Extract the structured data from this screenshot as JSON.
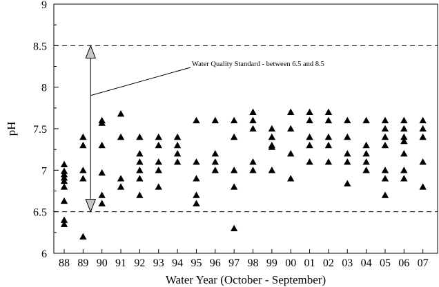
{
  "chart_data": {
    "type": "scatter",
    "title": "",
    "xlabel": "Water Year (October - September)",
    "ylabel": "pH",
    "ylim": [
      6,
      9
    ],
    "yticks": [
      "6",
      "6.5",
      "7",
      "7.5",
      "8",
      "8.5",
      "9"
    ],
    "categories": [
      "88",
      "89",
      "90",
      "91",
      "92",
      "93",
      "94",
      "95",
      "96",
      "97",
      "98",
      "99",
      "00",
      "01",
      "02",
      "03",
      "04",
      "05",
      "06",
      "07"
    ],
    "grid": false,
    "reference_lines": [
      6.5,
      8.5
    ],
    "annotation": {
      "text": "Water Quality Standard - between 6.5 and 8.5",
      "range": [
        6.5,
        8.5
      ],
      "x_category_index": 1.4
    },
    "marker": "triangle",
    "marker_color": "#000000",
    "points": [
      [
        0,
        7.07
      ],
      [
        0,
        6.99
      ],
      [
        0,
        6.95
      ],
      [
        0,
        6.91
      ],
      [
        0,
        6.87
      ],
      [
        0,
        6.8
      ],
      [
        0,
        6.63
      ],
      [
        0,
        6.4
      ],
      [
        0,
        6.35
      ],
      [
        1,
        7.4
      ],
      [
        1,
        7.3
      ],
      [
        1,
        7.0
      ],
      [
        1,
        6.9
      ],
      [
        1,
        6.2
      ],
      [
        2,
        7.6
      ],
      [
        2,
        7.57
      ],
      [
        2,
        7.3
      ],
      [
        2,
        6.97
      ],
      [
        2,
        6.7
      ],
      [
        2,
        6.6
      ],
      [
        3,
        7.68
      ],
      [
        3,
        7.4
      ],
      [
        3,
        6.9
      ],
      [
        3,
        6.8
      ],
      [
        4,
        7.4
      ],
      [
        4,
        7.2
      ],
      [
        4,
        7.1
      ],
      [
        4,
        7.0
      ],
      [
        4,
        6.9
      ],
      [
        4,
        6.7
      ],
      [
        5,
        7.4
      ],
      [
        5,
        7.3
      ],
      [
        5,
        7.1
      ],
      [
        5,
        7.0
      ],
      [
        5,
        6.8
      ],
      [
        6,
        7.4
      ],
      [
        6,
        7.3
      ],
      [
        6,
        7.2
      ],
      [
        6,
        7.1
      ],
      [
        7,
        7.6
      ],
      [
        7,
        7.1
      ],
      [
        7,
        6.9
      ],
      [
        7,
        6.7
      ],
      [
        7,
        6.6
      ],
      [
        8,
        7.6
      ],
      [
        8,
        7.2
      ],
      [
        8,
        7.1
      ],
      [
        8,
        7.0
      ],
      [
        9,
        7.6
      ],
      [
        9,
        7.4
      ],
      [
        9,
        7.0
      ],
      [
        9,
        6.8
      ],
      [
        9,
        6.3
      ],
      [
        10,
        7.7
      ],
      [
        10,
        7.6
      ],
      [
        10,
        7.5
      ],
      [
        10,
        7.1
      ],
      [
        10,
        7.0
      ],
      [
        11,
        7.5
      ],
      [
        11,
        7.4
      ],
      [
        11,
        7.3
      ],
      [
        11,
        7.28
      ],
      [
        11,
        7.0
      ],
      [
        12,
        7.7
      ],
      [
        12,
        7.5
      ],
      [
        12,
        7.2
      ],
      [
        12,
        6.9
      ],
      [
        13,
        7.7
      ],
      [
        13,
        7.6
      ],
      [
        13,
        7.4
      ],
      [
        13,
        7.3
      ],
      [
        13,
        7.1
      ],
      [
        14,
        7.7
      ],
      [
        14,
        7.6
      ],
      [
        14,
        7.4
      ],
      [
        14,
        7.3
      ],
      [
        14,
        7.1
      ],
      [
        15,
        7.6
      ],
      [
        15,
        7.4
      ],
      [
        15,
        7.2
      ],
      [
        15,
        7.1
      ],
      [
        15,
        6.84
      ],
      [
        16,
        7.6
      ],
      [
        16,
        7.3
      ],
      [
        16,
        7.2
      ],
      [
        16,
        7.1
      ],
      [
        16,
        7.0
      ],
      [
        17,
        7.6
      ],
      [
        17,
        7.5
      ],
      [
        17,
        7.4
      ],
      [
        17,
        7.3
      ],
      [
        17,
        7.0
      ],
      [
        17,
        6.9
      ],
      [
        17,
        6.7
      ],
      [
        18,
        7.6
      ],
      [
        18,
        7.5
      ],
      [
        18,
        7.4
      ],
      [
        18,
        7.35
      ],
      [
        18,
        7.2
      ],
      [
        18,
        7.0
      ],
      [
        18,
        6.9
      ],
      [
        19,
        7.6
      ],
      [
        19,
        7.5
      ],
      [
        19,
        7.4
      ],
      [
        19,
        7.1
      ],
      [
        19,
        6.8
      ]
    ]
  }
}
